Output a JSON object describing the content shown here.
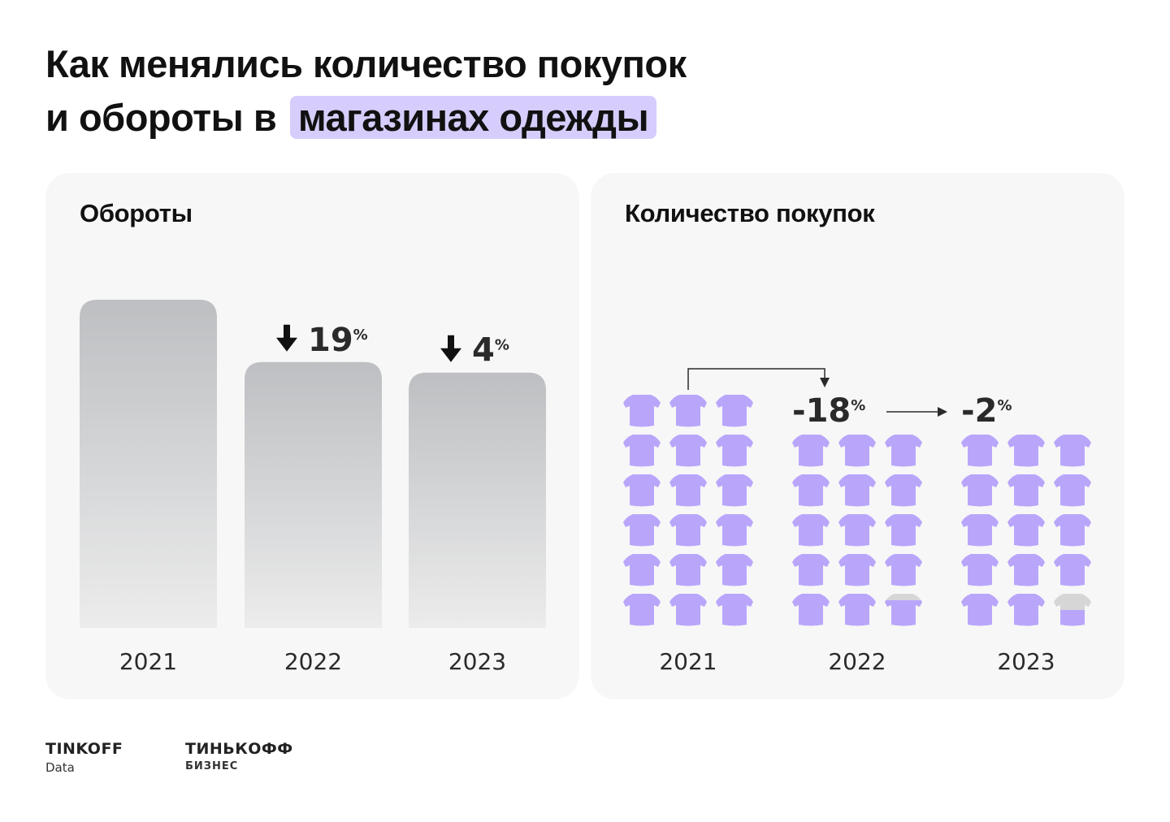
{
  "title": {
    "line1": "Как менялись количество покупок",
    "line2_prefix": "и обороты в",
    "line2_highlight": "магазинах одежды"
  },
  "colors": {
    "highlight": "#d6cdfc",
    "shirt_purple": "#b9a6fb",
    "shirt_grey": "#d6d6d6",
    "bar_top": "#bdbfc2",
    "bar_bottom": "#ececec",
    "panel_bg": "#f7f7f7"
  },
  "icons": {
    "change_marker": "arrow-down-icon",
    "unit": "t-shirt-icon"
  },
  "chart_data": [
    {
      "type": "bar",
      "title": "Обороты",
      "categories": [
        "2021",
        "2022",
        "2023"
      ],
      "values": [
        100,
        81,
        77.8
      ],
      "ylim": [
        0,
        100
      ],
      "grid": false,
      "annotations": [
        {
          "category": "2022",
          "text": "19",
          "unit": "%",
          "direction": "down",
          "marker": "arrow-down-icon"
        },
        {
          "category": "2023",
          "text": "4",
          "unit": "%",
          "direction": "down",
          "marker": "arrow-down-icon"
        }
      ]
    },
    {
      "type": "bar",
      "title": "Количество покупок",
      "categories": [
        "2021",
        "2022",
        "2023"
      ],
      "values": [
        18,
        14.8,
        14.5
      ],
      "max_units": 18,
      "unit_icon": "t-shirt-icon",
      "annotations": [
        {
          "from": "2021",
          "to": "2022",
          "text": "-18",
          "unit": "%"
        },
        {
          "from": "2022",
          "to": "2023",
          "text": "-2",
          "unit": "%"
        }
      ]
    }
  ],
  "logos": [
    {
      "name": "TINKOFF",
      "sub": "Data"
    },
    {
      "name": "ТИНЬКОФФ",
      "sub": "БИЗНЕС"
    }
  ]
}
